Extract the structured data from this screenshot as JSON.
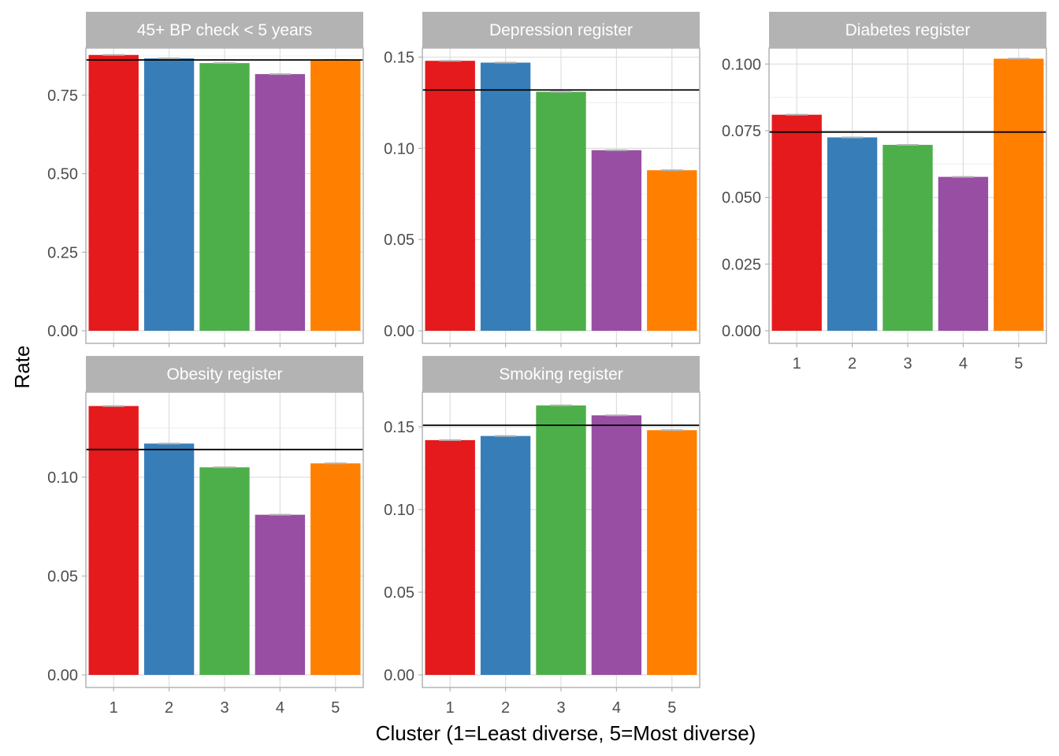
{
  "chart_data": {
    "type": "bar",
    "xlabel": "Cluster (1=Least diverse, 5=Most diverse)",
    "ylabel": "Rate",
    "grid": true,
    "legend": "none",
    "categories": [
      "1",
      "2",
      "3",
      "4",
      "5"
    ],
    "colors": [
      "#E41A1C",
      "#377EB8",
      "#4DAF4A",
      "#984EA3",
      "#FF7F00"
    ],
    "panels": [
      {
        "title": "45+ BP check < 5 years",
        "values": [
          0.878,
          0.867,
          0.852,
          0.817,
          0.862
        ],
        "reference": 0.862,
        "ylim": [
          0,
          0.9
        ],
        "yticks": [
          0.0,
          0.25,
          0.5,
          0.75
        ],
        "ytick_labels": [
          "0.00",
          "0.25",
          "0.50",
          "0.75"
        ],
        "show_x_ticks": false
      },
      {
        "title": "Depression register",
        "values": [
          0.148,
          0.147,
          0.131,
          0.099,
          0.088
        ],
        "reference": 0.132,
        "ylim": [
          0,
          0.155
        ],
        "yticks": [
          0.0,
          0.05,
          0.1,
          0.15
        ],
        "ytick_labels": [
          "0.00",
          "0.05",
          "0.10",
          "0.15"
        ],
        "show_x_ticks": false
      },
      {
        "title": "Diabetes register",
        "values": [
          0.081,
          0.0725,
          0.0697,
          0.0577,
          0.102
        ],
        "reference": 0.0745,
        "ylim": [
          0,
          0.106
        ],
        "yticks": [
          0.0,
          0.025,
          0.05,
          0.075,
          0.1
        ],
        "ytick_labels": [
          "0.000",
          "0.025",
          "0.050",
          "0.075",
          "0.100"
        ],
        "show_x_ticks": true
      },
      {
        "title": "Obesity register",
        "values": [
          0.136,
          0.117,
          0.105,
          0.081,
          0.107
        ],
        "reference": 0.114,
        "ylim": [
          0,
          0.143
        ],
        "yticks": [
          0.0,
          0.05,
          0.1
        ],
        "ytick_labels": [
          "0.00",
          "0.05",
          "0.10"
        ],
        "show_x_ticks": true
      },
      {
        "title": "Smoking register",
        "values": [
          0.142,
          0.1445,
          0.163,
          0.157,
          0.148
        ],
        "reference": 0.151,
        "ylim": [
          0,
          0.171
        ],
        "yticks": [
          0.0,
          0.05,
          0.1,
          0.15
        ],
        "ytick_labels": [
          "0.00",
          "0.05",
          "0.10",
          "0.15"
        ],
        "show_x_ticks": true
      }
    ]
  }
}
